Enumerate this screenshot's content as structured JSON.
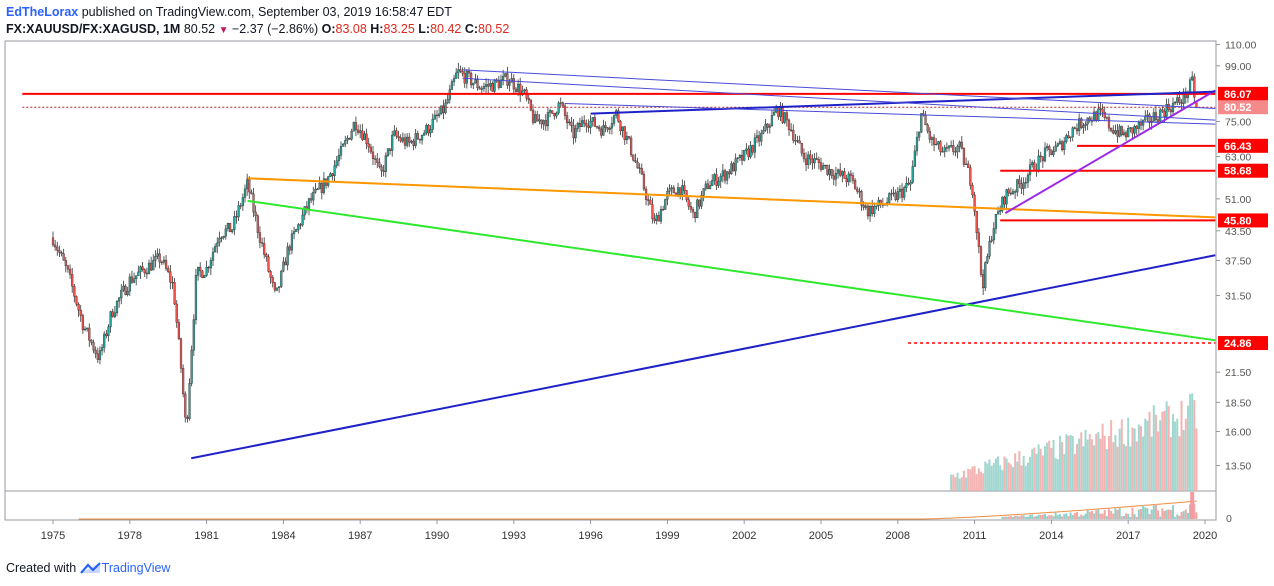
{
  "header": {
    "author": "EdTheLorax",
    "published": " published on TradingView.com, September 03, 2019 16:58:47 EDT",
    "symbol": "FX:XAUUSD/FX:XAGUSD, 1M",
    "last": "80.52",
    "change": "−2.37 (−2.86%)",
    "open_label": "O:",
    "open": "83.08",
    "high_label": "H:",
    "high": "83.25",
    "low_label": "L:",
    "low": "80.42",
    "close_label": "C:",
    "close": "80.52"
  },
  "footer": {
    "created_with": "Created with",
    "brand": "TradingView"
  },
  "colors": {
    "up": "#26a69a",
    "down": "#ef5350",
    "red_line": "#ff0000",
    "blue_line": "#1e22c8",
    "green_line": "#2ee82e",
    "orange_line": "#ff9800",
    "purple_line": "#9c27e8",
    "channel_line": "#4a4ad8"
  },
  "chart_data": {
    "type": "candlestick",
    "timeframe": "1M",
    "scale": "log",
    "ylim": [
      12.5,
      112
    ],
    "xlim": [
      1973.8,
      2021
    ],
    "x_ticks": [
      "1975",
      "1978",
      "1981",
      "1984",
      "1987",
      "1990",
      "1993",
      "1996",
      "1999",
      "2002",
      "2005",
      "2008",
      "2011",
      "2014",
      "2017",
      "2020"
    ],
    "y_ticks": [
      "110.00",
      "99.00",
      "86.07",
      "80.52",
      "75.00",
      "66.43",
      "63.00",
      "58.68",
      "51.00",
      "45.80",
      "43.50",
      "37.50",
      "31.50",
      "24.86",
      "21.50",
      "18.50",
      "16.00",
      "13.50"
    ],
    "price_labels": [
      {
        "value": "86.07",
        "style": "red"
      },
      {
        "value": "80.52",
        "style": "last"
      },
      {
        "value": "66.43",
        "style": "red"
      },
      {
        "value": "58.68",
        "style": "red"
      },
      {
        "value": "45.80",
        "style": "red"
      },
      {
        "value": "24.86",
        "style": "red"
      }
    ],
    "anchors": [
      [
        1975.0,
        42
      ],
      [
        1975.6,
        35
      ],
      [
        1976.2,
        27
      ],
      [
        1976.8,
        23
      ],
      [
        1977.3,
        29
      ],
      [
        1978.0,
        34
      ],
      [
        1978.6,
        36
      ],
      [
        1979.2,
        38
      ],
      [
        1979.7,
        33
      ],
      [
        1980.0,
        22
      ],
      [
        1980.2,
        16
      ],
      [
        1980.6,
        35
      ],
      [
        1981.0,
        36
      ],
      [
        1981.5,
        43
      ],
      [
        1982.0,
        44
      ],
      [
        1982.6,
        55
      ],
      [
        1983.0,
        44
      ],
      [
        1983.4,
        36
      ],
      [
        1983.7,
        31
      ],
      [
        1984.2,
        40
      ],
      [
        1985.0,
        50
      ],
      [
        1985.7,
        56
      ],
      [
        1986.3,
        65
      ],
      [
        1986.8,
        75
      ],
      [
        1987.3,
        68
      ],
      [
        1987.8,
        57
      ],
      [
        1988.3,
        70
      ],
      [
        1988.9,
        67
      ],
      [
        1989.6,
        72
      ],
      [
        1990.3,
        80
      ],
      [
        1990.8,
        96
      ],
      [
        1991.2,
        93
      ],
      [
        1991.7,
        89
      ],
      [
        1992.2,
        90
      ],
      [
        1992.8,
        93
      ],
      [
        1993.4,
        86
      ],
      [
        1993.8,
        75
      ],
      [
        1994.3,
        76
      ],
      [
        1994.8,
        82
      ],
      [
        1995.3,
        70
      ],
      [
        1995.8,
        76
      ],
      [
        1996.5,
        72
      ],
      [
        1997.0,
        78
      ],
      [
        1997.5,
        67
      ],
      [
        1998.0,
        56
      ],
      [
        1998.5,
        45
      ],
      [
        1999.0,
        52
      ],
      [
        1999.5,
        54
      ],
      [
        2000.0,
        47
      ],
      [
        2000.6,
        55
      ],
      [
        2001.3,
        58
      ],
      [
        2002.0,
        63
      ],
      [
        2002.7,
        70
      ],
      [
        2003.3,
        80
      ],
      [
        2003.8,
        73
      ],
      [
        2004.3,
        63
      ],
      [
        2004.9,
        61
      ],
      [
        2005.5,
        58
      ],
      [
        2006.2,
        56
      ],
      [
        2006.8,
        48
      ],
      [
        2007.5,
        50
      ],
      [
        2008.0,
        52
      ],
      [
        2008.5,
        55
      ],
      [
        2008.9,
        78
      ],
      [
        2009.3,
        68
      ],
      [
        2009.8,
        64
      ],
      [
        2010.4,
        66
      ],
      [
        2010.9,
        55
      ],
      [
        2011.1,
        43
      ],
      [
        2011.3,
        33
      ],
      [
        2011.7,
        44
      ],
      [
        2012.2,
        52
      ],
      [
        2012.8,
        55
      ],
      [
        2013.3,
        60
      ],
      [
        2013.8,
        64
      ],
      [
        2014.3,
        66
      ],
      [
        2014.8,
        72
      ],
      [
        2015.4,
        76
      ],
      [
        2015.9,
        78
      ],
      [
        2016.3,
        73
      ],
      [
        2016.8,
        70
      ],
      [
        2017.4,
        73
      ],
      [
        2017.9,
        76
      ],
      [
        2018.5,
        80
      ],
      [
        2019.0,
        83
      ],
      [
        2019.2,
        85
      ],
      [
        2019.5,
        91
      ],
      [
        2019.67,
        80.52
      ]
    ],
    "volume_note": "volume histogram shown from 2010 onward"
  },
  "drawings": [
    {
      "name": "horizontal-red-86",
      "color": "red_line",
      "points": [
        [
          1973.8,
          86.07
        ],
        [
          2020.4,
          86.07
        ]
      ]
    },
    {
      "name": "horizontal-red-80-dotted",
      "color": "red_line",
      "style": "dotted",
      "points": [
        [
          1973.8,
          80.52
        ],
        [
          2020.4,
          80.52
        ]
      ]
    },
    {
      "name": "level-66",
      "color": "red_line",
      "points": [
        [
          2015.0,
          66.43
        ],
        [
          2020.4,
          66.43
        ]
      ]
    },
    {
      "name": "level-58",
      "color": "red_line",
      "points": [
        [
          2012.0,
          58.68
        ],
        [
          2020.4,
          58.68
        ]
      ]
    },
    {
      "name": "level-45",
      "color": "red_line",
      "points": [
        [
          2012.0,
          45.8
        ],
        [
          2020.4,
          45.8
        ]
      ]
    },
    {
      "name": "level-24-dotted",
      "color": "red_line",
      "style": "dotted",
      "points": [
        [
          2008.4,
          24.86
        ],
        [
          2020.4,
          24.86
        ]
      ]
    },
    {
      "name": "blue-support",
      "color": "blue_line",
      "points": [
        [
          1980.4,
          14.0
        ],
        [
          2020.4,
          38.5
        ]
      ]
    },
    {
      "name": "green-trend",
      "color": "green_line",
      "points": [
        [
          1982.6,
          50.5
        ],
        [
          2020.4,
          25.2
        ]
      ]
    },
    {
      "name": "orange-trend",
      "color": "orange_line",
      "points": [
        [
          1982.6,
          56.5
        ],
        [
          2020.4,
          46.5
        ]
      ]
    },
    {
      "name": "purple-trend",
      "color": "purple_line",
      "points": [
        [
          2012.2,
          47.5
        ],
        [
          2020.4,
          87.5
        ]
      ]
    },
    {
      "name": "blue-rising-top",
      "color": "blue_line",
      "points": [
        [
          1996.0,
          78.0
        ],
        [
          2020.4,
          87.0
        ]
      ]
    },
    {
      "name": "channel-upper",
      "color": "channel_line",
      "points": [
        [
          1991.0,
          97.0
        ],
        [
          2020.4,
          80.0
        ]
      ]
    },
    {
      "name": "channel-mid",
      "color": "channel_line",
      "points": [
        [
          1991.0,
          93.0
        ],
        [
          2020.4,
          75.5
        ]
      ]
    },
    {
      "name": "channel-low",
      "color": "channel_line",
      "points": [
        [
          1995.0,
          82.0
        ],
        [
          2020.4,
          74.0
        ]
      ]
    }
  ]
}
